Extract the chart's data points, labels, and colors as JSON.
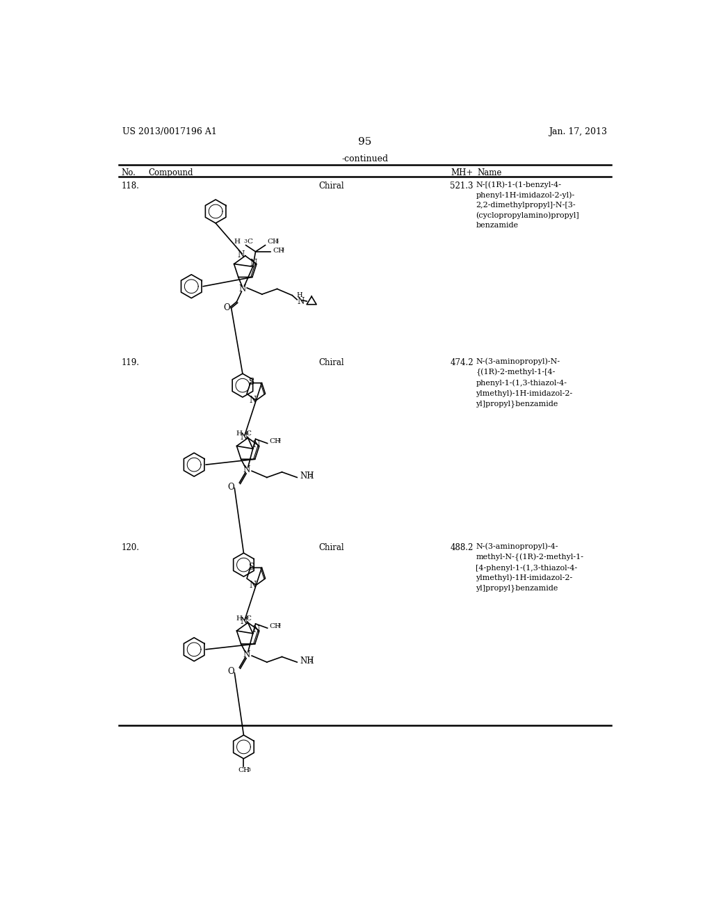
{
  "page_header_left": "US 2013/0017196 A1",
  "page_header_right": "Jan. 17, 2013",
  "page_number": "95",
  "table_title": "-continued",
  "background_color": "#ffffff",
  "text_color": "#000000",
  "rows": [
    {
      "no": "118.",
      "chiral": "Chiral",
      "mhplus": "521.3",
      "name": "N-[(1R)-1-(1-benzyl-4-\nphenyl-1H-imidazol-2-yl)-\n2,2-dimethylpropyl]-N-[3-\n(cyclopropylamino)propyl]\nbenzamide"
    },
    {
      "no": "119.",
      "chiral": "Chiral",
      "mhplus": "474.2",
      "name": "N-(3-aminopropyl)-N-\n{(1R)-2-methyl-1-[4-\nphenyl-1-(1,3-thiazol-4-\nylmethyl)-1H-imidazol-2-\nyl]propyl}benzamide"
    },
    {
      "no": "120.",
      "chiral": "Chiral",
      "mhplus": "488.2",
      "name": "N-(3-aminopropyl)-4-\nmethyl-N-{(1R)-2-methyl-1-\n[4-phenyl-1-(1,3-thiazol-4-\nylmethyl)-1H-imidazol-2-\nyl]propyl}benzamide"
    }
  ]
}
